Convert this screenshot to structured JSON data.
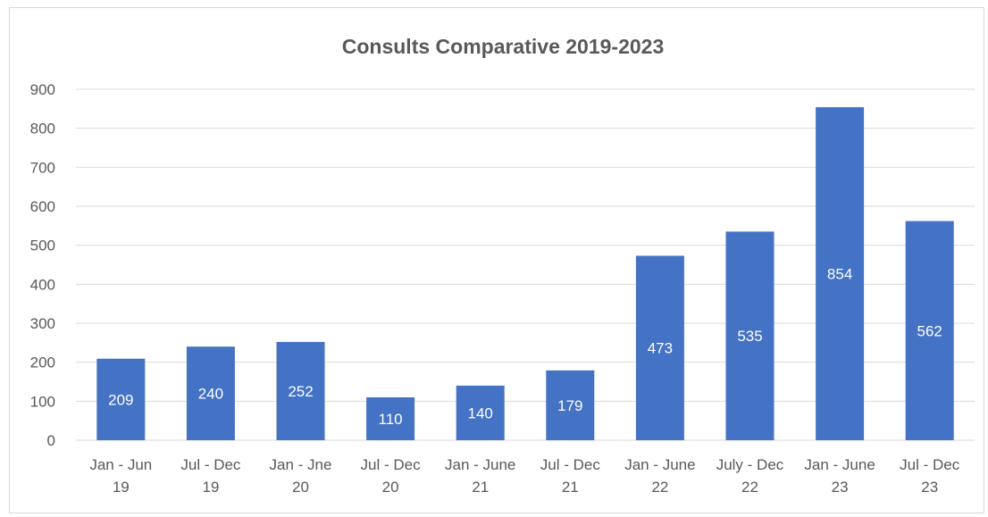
{
  "chart_data": {
    "type": "bar",
    "title": "Consults Comparative 2019-2023",
    "xlabel": "",
    "ylabel": "",
    "categories": [
      [
        "Jan - Jun",
        "19"
      ],
      [
        "Jul - Dec",
        "19"
      ],
      [
        "Jan - Jne",
        "20"
      ],
      [
        "Jul - Dec",
        "20"
      ],
      [
        "Jan - June",
        "21"
      ],
      [
        "Jul - Dec",
        "21"
      ],
      [
        "Jan - June",
        "22"
      ],
      [
        "July - Dec",
        "22"
      ],
      [
        "Jan - June",
        "23"
      ],
      [
        "Jul - Dec",
        "23"
      ]
    ],
    "values": [
      209,
      240,
      252,
      110,
      140,
      179,
      473,
      535,
      854,
      562
    ],
    "data_labels": [
      "209",
      "240",
      "252",
      "110",
      "140",
      "179",
      "473",
      "535",
      "854",
      "562"
    ],
    "ylim": [
      0,
      900
    ],
    "yticks": [
      0,
      100,
      200,
      300,
      400,
      500,
      600,
      700,
      800,
      900
    ],
    "grid": true,
    "legend": "none",
    "bar_color": "#4472C4",
    "grid_color": "#d9d9d9",
    "text_color": "#595959",
    "label_color": "#ffffff"
  }
}
